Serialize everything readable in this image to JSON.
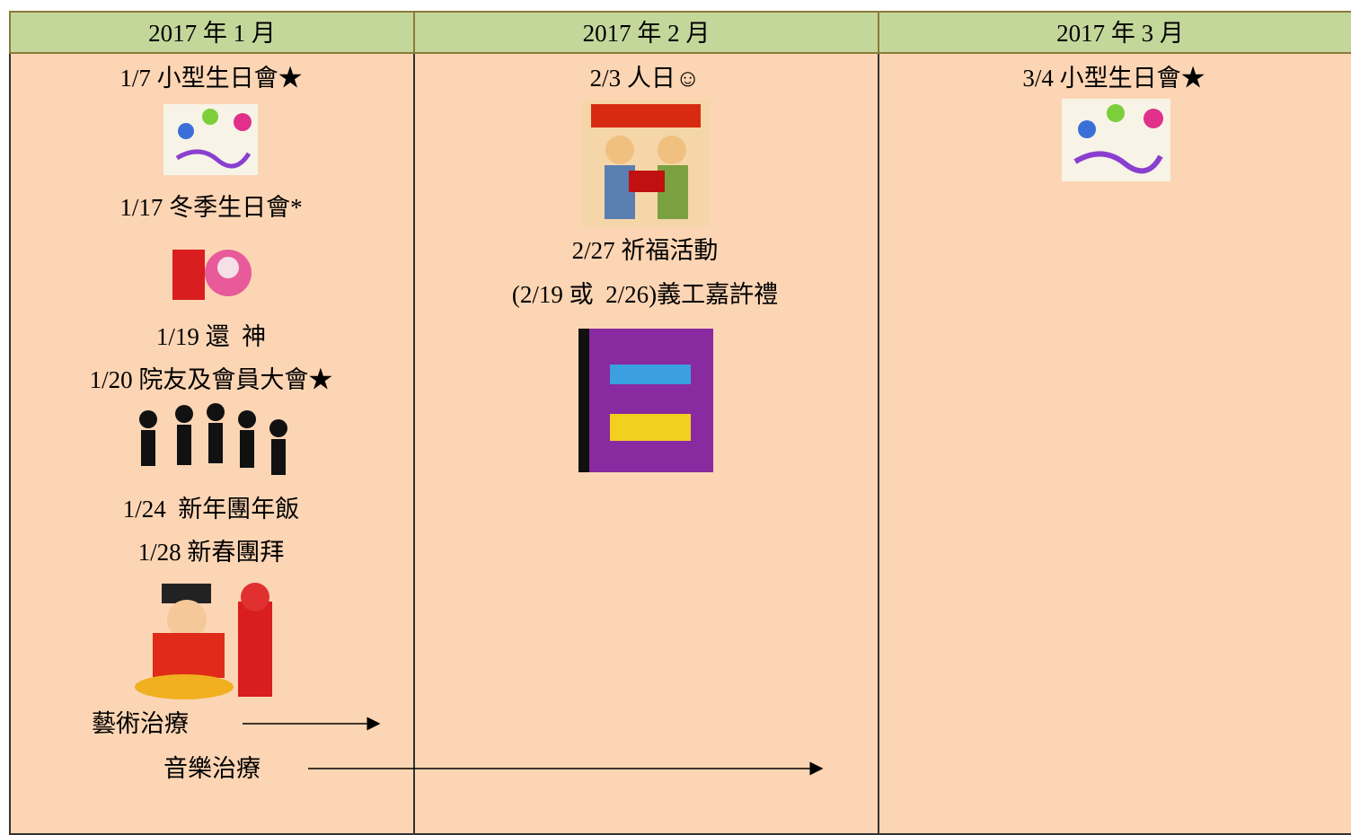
{
  "table": {
    "headers": [
      "2017 年 1 月",
      "2017 年 2 月",
      "2017 年 3 月"
    ],
    "columns": [
      [
        "1/7 小型生日會★",
        "1/17 冬季生日會*",
        "1/19 還  神",
        "1/20 院友及會員大會★",
        "1/24  新年團年飯",
        "1/28 新春團拜"
      ],
      [
        "2/3 人日☺",
        "2/27 祈福活動",
        "(2/19 或  2/26)義工嘉許禮"
      ],
      [
        "3/4 小型生日會★"
      ]
    ]
  },
  "arrows": [
    "藝術治療",
    "音樂治療"
  ]
}
